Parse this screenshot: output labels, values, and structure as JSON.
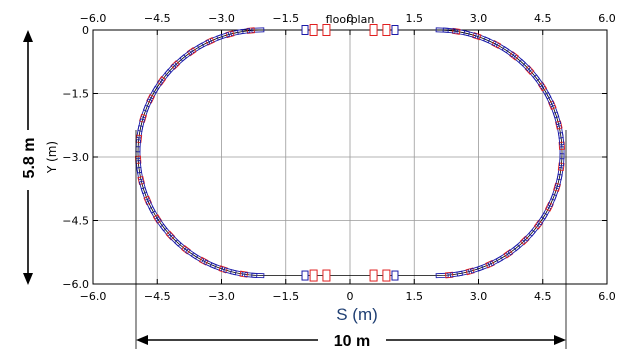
{
  "chart_data": {
    "type": "line",
    "title": "floorplan",
    "xlabel": "S (m)",
    "ylabel": "Y (m)",
    "xlim": [
      -6.0,
      6.0
    ],
    "ylim": [
      -6.0,
      0.0
    ],
    "x_ticks": [
      "−6.0",
      "−4.5",
      "−3.0",
      "−1.5",
      "0",
      "1.5",
      "3.0",
      "4.5",
      "6.0"
    ],
    "x_tick_values": [
      -6.0,
      -4.5,
      -3.0,
      -1.5,
      0,
      1.5,
      3.0,
      4.5,
      6.0
    ],
    "y_ticks": [
      "0",
      "−1.5",
      "−3.0",
      "−4.5",
      "−6.0"
    ],
    "y_tick_values": [
      0,
      -1.5,
      -3.0,
      -4.5,
      -6.0
    ],
    "grid": true,
    "ring": {
      "center_x": 0,
      "center_y": -2.9,
      "half_straight_length": 2.05,
      "bend_radius": 2.9,
      "straight_magnets_x": [
        -1.05,
        -0.85,
        -0.55,
        0.55,
        0.85,
        1.05
      ]
    },
    "colors": {
      "dipole": "#1a1aa8",
      "quadrupole": "#e02020",
      "grid": "#9a9a9a",
      "xlabel": "#1f3f73"
    },
    "annotations": {
      "height": "5.8 m",
      "width": "10 m"
    }
  }
}
